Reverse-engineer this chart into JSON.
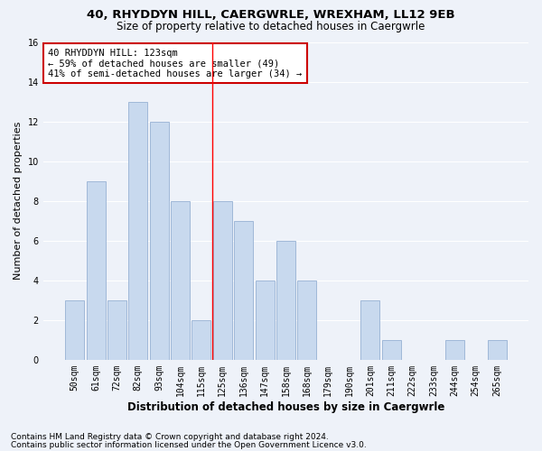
{
  "title1": "40, RHYDDYN HILL, CAERGWRLE, WREXHAM, LL12 9EB",
  "title2": "Size of property relative to detached houses in Caergwrle",
  "xlabel": "Distribution of detached houses by size in Caergwrle",
  "ylabel": "Number of detached properties",
  "categories": [
    "50sqm",
    "61sqm",
    "72sqm",
    "82sqm",
    "93sqm",
    "104sqm",
    "115sqm",
    "125sqm",
    "136sqm",
    "147sqm",
    "158sqm",
    "168sqm",
    "179sqm",
    "190sqm",
    "201sqm",
    "211sqm",
    "222sqm",
    "233sqm",
    "244sqm",
    "254sqm",
    "265sqm"
  ],
  "values": [
    3,
    9,
    3,
    13,
    12,
    8,
    2,
    8,
    7,
    4,
    6,
    4,
    0,
    0,
    3,
    1,
    0,
    0,
    1,
    0,
    1
  ],
  "bar_color": "#c8d9ee",
  "bar_edgecolor": "#a0b8d8",
  "annotation_lines": [
    "40 RHYDDYN HILL: 123sqm",
    "← 59% of detached houses are smaller (49)",
    "41% of semi-detached houses are larger (34) →"
  ],
  "annotation_box_color": "#ffffff",
  "annotation_box_edgecolor": "#cc0000",
  "redline_x": 6.5,
  "yticks": [
    0,
    2,
    4,
    6,
    8,
    10,
    12,
    14,
    16
  ],
  "ylim": [
    0,
    16
  ],
  "footer1": "Contains HM Land Registry data © Crown copyright and database right 2024.",
  "footer2": "Contains public sector information licensed under the Open Government Licence v3.0.",
  "bg_color": "#eef2f9",
  "grid_color": "#ffffff",
  "title1_fontsize": 9.5,
  "title2_fontsize": 8.5,
  "xlabel_fontsize": 8.5,
  "ylabel_fontsize": 8,
  "tick_fontsize": 7,
  "annotation_fontsize": 7.5,
  "footer_fontsize": 6.5
}
